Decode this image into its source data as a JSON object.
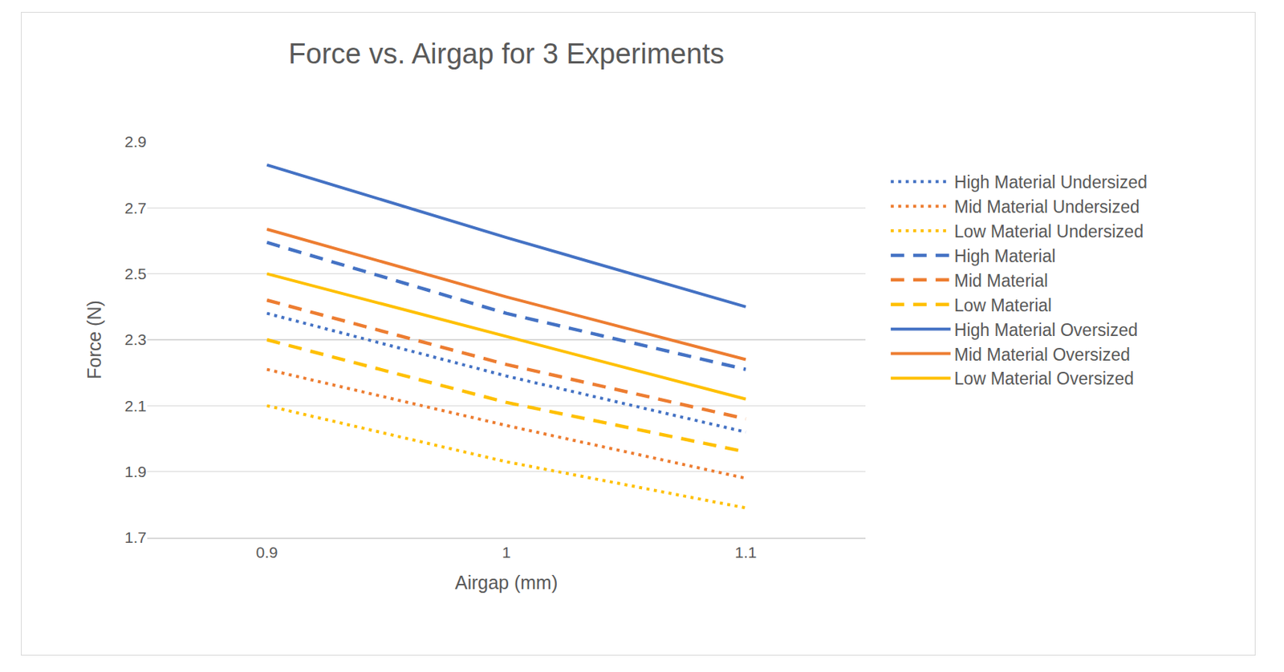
{
  "chart_data": {
    "type": "line",
    "title": "Force vs. Airgap for 3 Experiments",
    "x_label": "Airgap (mm)",
    "y_label": "Force (N)",
    "categories": [
      "0.9",
      "1",
      "1.1"
    ],
    "ylim": [
      1.7,
      2.9
    ],
    "yticks": [
      1.7,
      1.9,
      2.1,
      2.3,
      2.5,
      2.7,
      2.9
    ],
    "grid": true,
    "legend": "right",
    "series": [
      {
        "name": "High Material Undersized",
        "color": "#4472c4",
        "line_style": "dot",
        "values": [
          2.38,
          2.19,
          2.02
        ]
      },
      {
        "name": "Mid Material Undersized",
        "color": "#ed7d31",
        "line_style": "dot",
        "values": [
          2.21,
          2.04,
          1.88
        ]
      },
      {
        "name": "Low Material Undersized",
        "color": "#ffc000",
        "line_style": "dot",
        "values": [
          2.1,
          1.93,
          1.79
        ]
      },
      {
        "name": "High Material",
        "color": "#4472c4",
        "line_style": "dash",
        "values": [
          2.595,
          2.38,
          2.21
        ]
      },
      {
        "name": "Mid Material",
        "color": "#ed7d31",
        "line_style": "dash",
        "values": [
          2.42,
          2.225,
          2.06
        ]
      },
      {
        "name": "Low Material",
        "color": "#ffc000",
        "line_style": "dash",
        "values": [
          2.3,
          2.11,
          1.96
        ]
      },
      {
        "name": "High Material Oversized",
        "color": "#4472c4",
        "line_style": "solid",
        "values": [
          2.83,
          2.61,
          2.4
        ]
      },
      {
        "name": "Mid Material Oversized",
        "color": "#ed7d31",
        "line_style": "solid",
        "values": [
          2.635,
          2.43,
          2.24
        ]
      },
      {
        "name": "Low Material Oversized",
        "color": "#ffc000",
        "line_style": "solid",
        "values": [
          2.5,
          2.31,
          2.12
        ]
      }
    ]
  }
}
